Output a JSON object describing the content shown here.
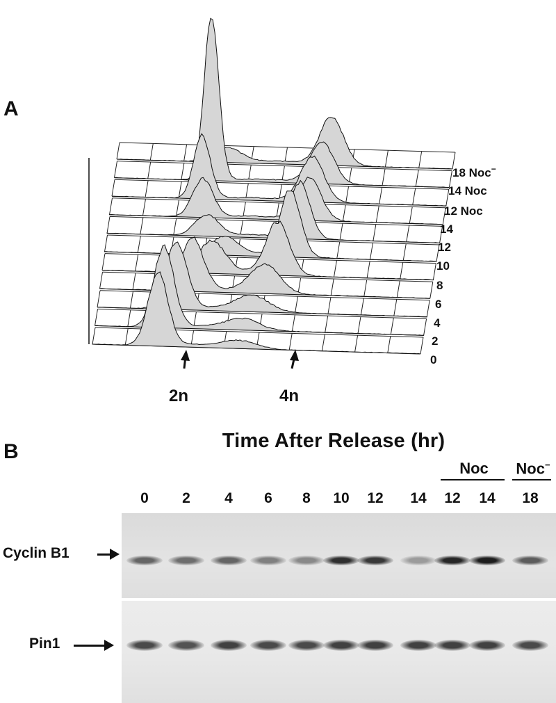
{
  "panel_a": {
    "letter": "A",
    "rows": [
      "0",
      "2",
      "4",
      "6",
      "8",
      "10",
      "12",
      "14",
      "12 Noc",
      "14 Noc",
      "18 Noc"
    ],
    "row18_superscript": "−",
    "markers": {
      "left": "2n",
      "right": "4n"
    }
  },
  "panel_b": {
    "letter": "B",
    "title": "Time After Release (hr)",
    "group_noc": "Noc",
    "group_nocminus": "Noc",
    "group_nocminus_sup": "−",
    "lanes": [
      "0",
      "2",
      "4",
      "6",
      "8",
      "10",
      "12",
      "14",
      "12",
      "14",
      "18"
    ],
    "blot_rows": [
      "Cyclin B1",
      "Pin1"
    ],
    "cyclin_intensity": [
      0.55,
      0.5,
      0.55,
      0.4,
      0.35,
      0.85,
      0.8,
      0.25,
      0.9,
      0.95,
      0.6
    ],
    "pin1_intensity": [
      0.7,
      0.65,
      0.75,
      0.7,
      0.7,
      0.75,
      0.75,
      0.75,
      0.75,
      0.75,
      0.7
    ]
  }
}
